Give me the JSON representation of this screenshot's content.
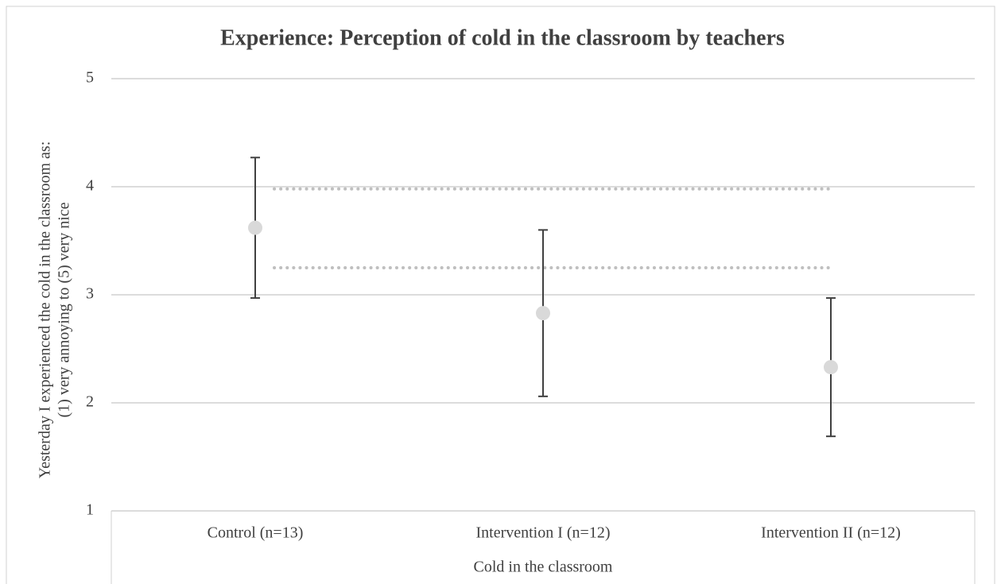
{
  "chart_data": {
    "type": "errorbar",
    "title": "Experience: Perception of cold in the classroom by teachers",
    "ylabel": [
      "Yesterday I experienced the cold in the classroom as:",
      "(1) very annoying to (5) very nice"
    ],
    "xlabel": "Cold in the classroom",
    "categories": [
      "Control (n=13)",
      "Intervention I (n=12)",
      "Intervention II (n=12)"
    ],
    "values": [
      3.62,
      2.83,
      2.33
    ],
    "errors": [
      0.65,
      0.77,
      0.64
    ],
    "reference_lines": [
      3.98,
      3.25
    ],
    "color": "#d9d9d9",
    "error_color": "#404040",
    "reference_color": "#bfbfbf",
    "ylim": [
      1,
      5
    ],
    "yticks": [
      1,
      2,
      3,
      4,
      5
    ],
    "grid": true
  }
}
